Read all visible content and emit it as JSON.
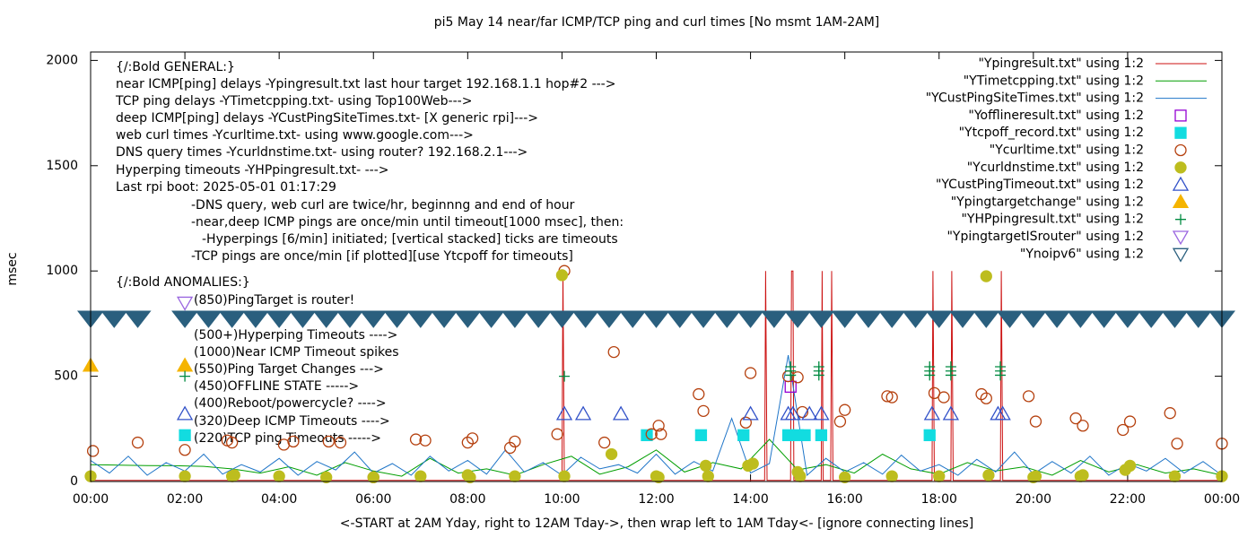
{
  "chart_data": {
    "type": "scatter",
    "title": "pi5 May 14  near/far ICMP/TCP ping and curl times [No msmt 1AM-2AM]",
    "xlabel": "<-START at 2AM Yday, right to 12AM Tday->, then wrap left to 1AM Tday<- [ignore connecting lines]",
    "ylabel": "msec",
    "xlim": [
      0,
      24
    ],
    "ylim": [
      0,
      2040
    ],
    "xticks": [
      {
        "value": 0,
        "label": "00:00"
      },
      {
        "value": 2,
        "label": "02:00"
      },
      {
        "value": 4,
        "label": "04:00"
      },
      {
        "value": 6,
        "label": "06:00"
      },
      {
        "value": 8,
        "label": "08:00"
      },
      {
        "value": 10,
        "label": "10:00"
      },
      {
        "value": 12,
        "label": "12:00"
      },
      {
        "value": 14,
        "label": "14:00"
      },
      {
        "value": 16,
        "label": "16:00"
      },
      {
        "value": 18,
        "label": "18:00"
      },
      {
        "value": 20,
        "label": "20:00"
      },
      {
        "value": 22,
        "label": "22:00"
      },
      {
        "value": 24,
        "label": "00:00"
      }
    ],
    "yticks": [
      0,
      500,
      1000,
      1500,
      2000
    ],
    "legend": "top-right",
    "annotations": [
      "{/:Bold GENERAL:}",
      "near ICMP[ping] delays -Ypingresult.txt last hour target 192.168.1.1 hop#2 --->",
      "TCP ping delays -YTimetcpping.txt- using Top100Web--->",
      "deep ICMP[ping] delays -YCustPingSiteTimes.txt- [X generic rpi]--->",
      "web curl times -Ycurltime.txt- using www.google.com--->",
      "DNS query times -Ycurldnstime.txt- using router? 192.168.2.1--->",
      "Hyperping timeouts -YHPpingresult.txt- --->",
      "Last rpi boot: 2025-05-01 01:17:29",
      "-DNS query, web curl are twice/hr, beginnng and end of hour",
      "-near,deep ICMP pings are once/min until timeout[1000 msec], then:",
      "-Hyperpings [6/min] initiated; [vertical stacked] ticks are timeouts",
      "-TCP pings are once/min [if plotted][use Ytcpoff for timeouts]",
      "{/:Bold ANOMALIES:}",
      "(850)PingTarget is router!",
      "(500+)Hyperping Timeouts ---->",
      "(1000)Near ICMP Timeout spikes",
      "(550)Ping Target Changes --->",
      "(450)OFFLINE STATE ----->",
      "(400)Reboot/powercycle? ---->",
      "(320)Deep ICMP Timeouts ---->",
      "(220)TCP ping Timeouts ----->"
    ],
    "series": [
      {
        "name": "\"Ypingresult.txt\" using 1:2",
        "color": "#cc1111",
        "marker": "line",
        "x": [
          0,
          2,
          4,
          6,
          8,
          10,
          10.02,
          10.05,
          12,
          14.3,
          14.32,
          14.35,
          14.85,
          14.87,
          14.9,
          14.92,
          15.0,
          15.5,
          15.52,
          15.54,
          15.7,
          15.72,
          15.75,
          16,
          17.85,
          17.87,
          17.9,
          18.25,
          18.27,
          18.3,
          19.3,
          19.32,
          19.35,
          22,
          24
        ],
        "values": [
          5,
          5,
          5,
          5,
          5,
          5,
          1000,
          5,
          5,
          5,
          1000,
          5,
          5,
          1000,
          1000,
          5,
          5,
          5,
          1000,
          5,
          5,
          1000,
          5,
          5,
          5,
          1000,
          5,
          5,
          1000,
          5,
          5,
          1000,
          5,
          5,
          5
        ]
      },
      {
        "name": "\"YTimetcpping.txt\" using 1:2",
        "color": "#009e00",
        "marker": "line",
        "x": [
          0,
          0.6,
          1.2,
          1.8,
          2.4,
          3,
          3.6,
          4.2,
          4.8,
          5.4,
          6,
          6.6,
          7.2,
          7.8,
          8.4,
          9,
          9.6,
          10.2,
          10.8,
          11.4,
          12,
          12.6,
          13.2,
          13.8,
          14.4,
          15,
          15.6,
          16.2,
          16.8,
          17.4,
          18,
          18.6,
          19.2,
          19.8,
          20.4,
          21,
          21.6,
          22.2,
          22.8,
          23.4,
          24
        ],
        "values": [
          80,
          78,
          76,
          75,
          72,
          60,
          40,
          70,
          30,
          90,
          50,
          25,
          110,
          40,
          60,
          30,
          80,
          120,
          35,
          70,
          150,
          45,
          90,
          60,
          200,
          55,
          80,
          40,
          130,
          60,
          35,
          90,
          50,
          70,
          30,
          100,
          45,
          80,
          40,
          60,
          30
        ]
      },
      {
        "name": "\"YCustPingSiteTimes.txt\" using 1:2",
        "color": "#1f75c8",
        "marker": "line",
        "x": [
          0,
          0.4,
          0.8,
          1.2,
          1.6,
          2,
          2.4,
          2.8,
          3.2,
          3.6,
          4,
          4.4,
          4.8,
          5.2,
          5.6,
          6,
          6.4,
          6.8,
          7.2,
          7.6,
          8,
          8.4,
          8.8,
          9.2,
          9.6,
          10,
          10.4,
          10.8,
          11.2,
          11.6,
          12,
          12.4,
          12.8,
          13.2,
          13.6,
          14,
          14.4,
          14.8,
          15.2,
          15.6,
          16,
          16.4,
          16.8,
          17.2,
          17.6,
          18,
          18.4,
          18.8,
          19.2,
          19.6,
          20,
          20.4,
          20.8,
          21.2,
          21.6,
          22,
          22.4,
          22.8,
          23.2,
          23.6,
          24
        ],
        "values": [
          100,
          40,
          120,
          30,
          90,
          50,
          130,
          35,
          80,
          45,
          110,
          30,
          95,
          55,
          140,
          40,
          85,
          30,
          120,
          50,
          100,
          35,
          150,
          45,
          90,
          30,
          115,
          60,
          80,
          40,
          130,
          35,
          95,
          50,
          300,
          40,
          85,
          600,
          30,
          110,
          45,
          90,
          35,
          125,
          50,
          80,
          30,
          105,
          45,
          140,
          35,
          95,
          40,
          120,
          30,
          85,
          50,
          110,
          40,
          95,
          30
        ]
      },
      {
        "name": "\"Yofflineresult.txt\" using 1:2",
        "color": "#9400d3",
        "marker": "square-open",
        "x": [
          14.85
        ],
        "values": [
          450
        ]
      },
      {
        "name": "\"Ytcpoff_record.txt\" using 1:2",
        "color": "#12dce0",
        "marker": "square",
        "x": [
          2,
          11.8,
          12.95,
          13.85,
          14.8,
          15.0,
          15.15,
          15.5,
          17.8
        ],
        "values": [
          220,
          220,
          220,
          220,
          220,
          220,
          220,
          220,
          220
        ]
      },
      {
        "name": "\"Ycurltime.txt\" using 1:2",
        "color": "#b5400e",
        "marker": "circle-open",
        "x": [
          0.05,
          1,
          2,
          2.9,
          3,
          4.1,
          4.3,
          5.05,
          5.3,
          6,
          6.9,
          7.1,
          8,
          8.1,
          8.9,
          9,
          9.9,
          10.05,
          10.9,
          11.1,
          11.9,
          12.05,
          12.1,
          12.9,
          13,
          13.9,
          14,
          14.8,
          15,
          15.1,
          15.9,
          16,
          16.9,
          17,
          17.9,
          18.1,
          18.9,
          19,
          19.9,
          20.05,
          20.9,
          21.05,
          21.9,
          22.05,
          22.9,
          23.05,
          24
        ],
        "values": [
          145,
          185,
          150,
          195,
          185,
          175,
          190,
          190,
          185,
          20,
          200,
          195,
          185,
          205,
          160,
          190,
          225,
          1000,
          185,
          615,
          225,
          265,
          225,
          415,
          335,
          280,
          515,
          500,
          495,
          330,
          285,
          340,
          405,
          400,
          420,
          400,
          415,
          395,
          405,
          285,
          300,
          265,
          245,
          285,
          325,
          180,
          180
        ]
      },
      {
        "name": "\"Ycurldnstime.txt\" using 1:2",
        "color": "#bdbd1e",
        "marker": "circle",
        "x": [
          0,
          2,
          3,
          3.05,
          4,
          5,
          6,
          7,
          8,
          8.05,
          9,
          10,
          10.05,
          11.05,
          12,
          12.05,
          13.05,
          13.1,
          13.95,
          14.05,
          15,
          15.05,
          16,
          17,
          18,
          19,
          19.05,
          20,
          20.05,
          21,
          21.05,
          21.95,
          22.05,
          23,
          24
        ],
        "values": [
          25,
          25,
          25,
          30,
          25,
          20,
          20,
          25,
          30,
          20,
          25,
          980,
          25,
          130,
          25,
          20,
          75,
          25,
          75,
          85,
          45,
          25,
          20,
          25,
          25,
          975,
          30,
          20,
          25,
          25,
          30,
          55,
          75,
          25,
          25
        ]
      },
      {
        "name": "\"YCustPingTimeout.txt\" using 1:2",
        "color": "#3050c8",
        "marker": "triangle-open",
        "x": [
          2,
          10.05,
          10.45,
          11.25,
          14,
          14.8,
          14.9,
          15.25,
          15.5,
          17.85,
          18.25,
          19.25,
          19.35
        ],
        "values": [
          320,
          320,
          320,
          320,
          320,
          320,
          320,
          320,
          320,
          320,
          320,
          320,
          320
        ]
      },
      {
        "name": "\"Ypingtargetchange\" using 1:2",
        "color": "#f5b400",
        "marker": "triangle",
        "x": [
          0,
          2
        ],
        "values": [
          550,
          550
        ]
      },
      {
        "name": "\"YHPpingresult.txt\" using 1:2",
        "color": "#008a40",
        "marker": "plus",
        "x": [
          2,
          10.05,
          14.85,
          14.85,
          14.85,
          15.45,
          15.45,
          15.45,
          17.8,
          17.8,
          17.8,
          18.25,
          18.25,
          18.25,
          19.3,
          19.3,
          19.3
        ],
        "values": [
          500,
          500,
          505,
          525,
          545,
          505,
          525,
          545,
          505,
          525,
          545,
          505,
          525,
          545,
          505,
          525,
          545
        ]
      },
      {
        "name": "\"YpingtargetISrouter\" using 1:2",
        "color": "#9a66e0",
        "marker": "triangle-down-open",
        "x": [
          2
        ],
        "values": [
          850
        ]
      },
      {
        "name": "\"Ynoipv6\" using 1:2",
        "color": "#2a5f7e",
        "marker": "triangle-down",
        "x": [
          0,
          0.5,
          1,
          2,
          2.5,
          3,
          3.5,
          4,
          4.5,
          5,
          5.5,
          6,
          6.5,
          7,
          7.5,
          8,
          8.5,
          9,
          9.5,
          10,
          10.5,
          11,
          11.5,
          12,
          12.5,
          13,
          13.5,
          14,
          14.5,
          15,
          15.5,
          16,
          16.5,
          17,
          17.5,
          18,
          18.5,
          19,
          19.5,
          20,
          20.5,
          21,
          21.5,
          22,
          22.5,
          23,
          23.5,
          24
        ],
        "values": [
          775,
          775,
          775,
          775,
          775,
          775,
          775,
          775,
          775,
          775,
          775,
          775,
          775,
          775,
          775,
          775,
          775,
          775,
          775,
          775,
          775,
          775,
          775,
          775,
          775,
          775,
          775,
          775,
          775,
          775,
          775,
          775,
          775,
          775,
          775,
          775,
          775,
          775,
          775,
          775,
          775,
          775,
          775,
          775,
          775,
          775,
          775,
          775
        ]
      }
    ]
  }
}
